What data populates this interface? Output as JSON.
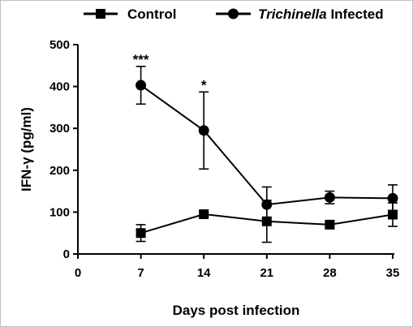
{
  "chart_data": {
    "type": "line",
    "xlabel": "Days post infection",
    "ylabel": "IFN-γ (pg/ml)",
    "xlim": [
      0,
      35
    ],
    "ylim": [
      0,
      500
    ],
    "x_ticks": [
      0,
      7,
      14,
      21,
      28,
      35
    ],
    "y_ticks": [
      0,
      100,
      200,
      300,
      400,
      500
    ],
    "grid": false,
    "legend_position": "top",
    "series": [
      {
        "name": "Control",
        "name_italic_part": "",
        "name_plain_part": "Control",
        "marker": "square",
        "x": [
          7,
          14,
          21,
          28,
          35
        ],
        "y": [
          50,
          95,
          78,
          70,
          94
        ],
        "err": [
          20,
          5,
          50,
          5,
          28
        ]
      },
      {
        "name": "Trichinella Infected",
        "name_italic_part": "Trichinella",
        "name_plain_part": " Infected",
        "marker": "circle",
        "x": [
          7,
          14,
          21,
          28,
          35
        ],
        "y": [
          403,
          295,
          118,
          135,
          133
        ],
        "err": [
          45,
          92,
          42,
          15,
          32
        ]
      }
    ],
    "annotations": [
      {
        "text": "***",
        "x": 7,
        "y": 403
      },
      {
        "text": "*",
        "x": 14,
        "y": 295
      }
    ]
  }
}
